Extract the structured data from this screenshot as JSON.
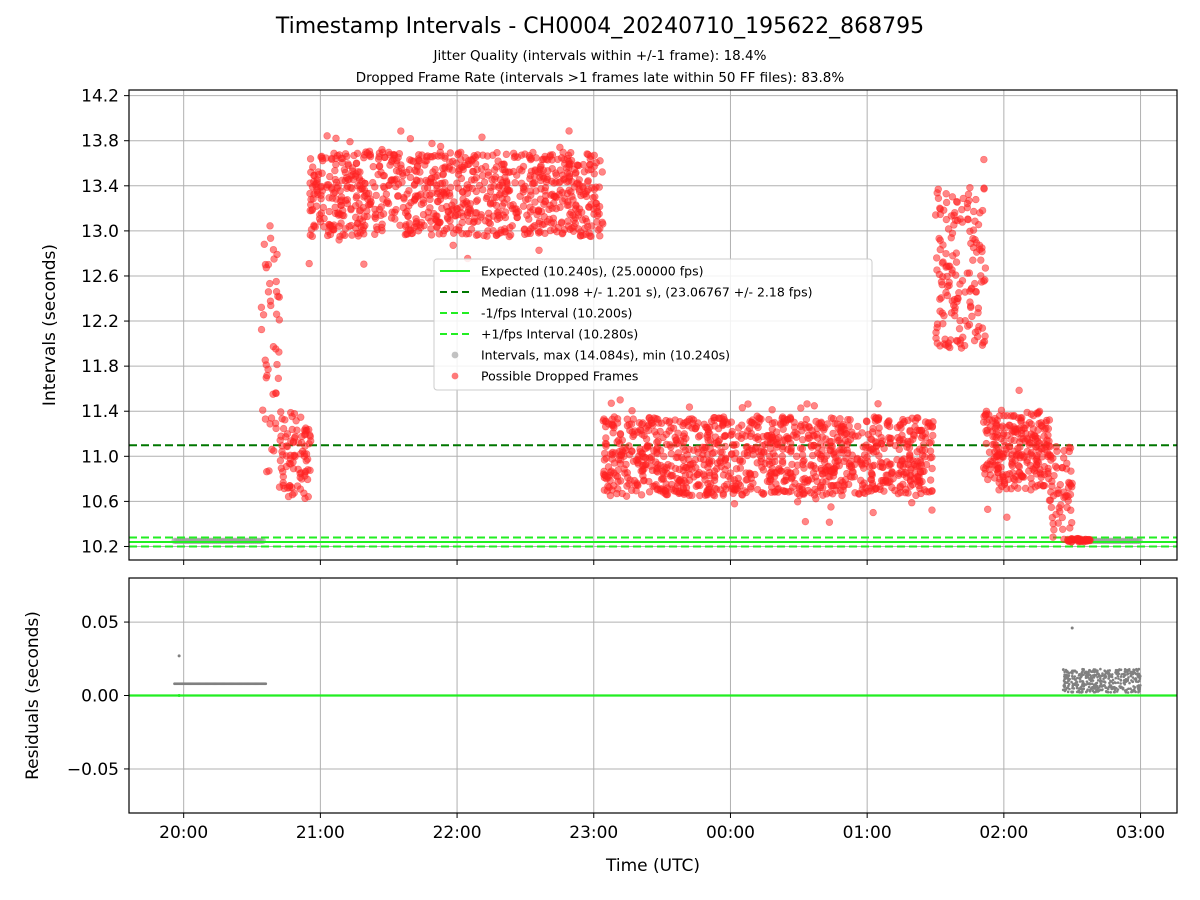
{
  "title": "Timestamp Intervals - CH0004_20240710_195622_868795",
  "subtitle_jitter": "Jitter Quality (intervals within +/-1 frame): 18.4%",
  "subtitle_dropped": "Dropped Frame Rate (intervals >1 frames late within 50 FF files): 83.8%",
  "colors": {
    "expected": "#22ee22",
    "median": "#007700",
    "interval_band": "#22ee22",
    "intervals": "#999999",
    "dropped": "#ff2222",
    "residuals": "#808080",
    "grid": "#b0b0b0"
  },
  "chart_data": [
    {
      "type": "scatter",
      "ylabel": "Intervals (seconds)",
      "ylim": [
        10.08,
        14.25
      ],
      "y_ticks": [
        "10.2",
        "10.6",
        "11.0",
        "11.4",
        "11.8",
        "12.2",
        "12.6",
        "13.0",
        "13.4",
        "13.8",
        "14.2"
      ],
      "x_ticks": [
        "20:00",
        "21:00",
        "22:00",
        "23:00",
        "00:00",
        "01:00",
        "02:00",
        "03:00"
      ],
      "xlim": [
        "19:36",
        "03:16"
      ],
      "grid": true,
      "legend_position": "center",
      "legend": [
        "Expected (10.240s), (25.00000 fps)",
        "Median (11.098 +/- 1.201 s), (23.06767 +/- 2.18 fps)",
        "-1/fps Interval (10.200s)",
        "+1/fps Interval (10.280s)",
        "Intervals, max (14.084s), min (10.240s)",
        "Possible Dropped Frames"
      ],
      "reference_lines": {
        "expected": 10.24,
        "median": 11.098,
        "minus_1fps": 10.2,
        "plus_1fps": 10.28
      },
      "intervals_max": 14.084,
      "intervals_min": 10.24,
      "normal_interval_segments": [
        {
          "start": "19:56",
          "end": "20:35",
          "value": 10.25
        },
        {
          "start": "02:38",
          "end": "03:00",
          "value": 10.25
        }
      ],
      "dropped_frame_segments": [
        {
          "start": "20:34",
          "end": "20:42",
          "y_min": 10.85,
          "y_max": 13.15,
          "count": 45
        },
        {
          "start": "20:42",
          "end": "20:56",
          "y_min": 10.65,
          "y_max": 11.4,
          "count": 90
        },
        {
          "start": "20:55",
          "end": "23:04",
          "y_min": 12.95,
          "y_max": 13.7,
          "count": 900
        },
        {
          "start": "23:04",
          "end": "01:29",
          "y_min": 10.65,
          "y_max": 11.35,
          "count": 1100
        },
        {
          "start": "01:30",
          "end": "01:52",
          "y_min": 11.95,
          "y_max": 13.4,
          "count": 160
        },
        {
          "start": "01:51",
          "end": "02:20",
          "y_min": 10.7,
          "y_max": 11.4,
          "count": 260
        },
        {
          "start": "02:20",
          "end": "02:30",
          "y_min": 10.25,
          "y_max": 11.1,
          "count": 60
        },
        {
          "start": "02:28",
          "end": "02:38",
          "y_min": 10.24,
          "y_max": 10.27,
          "count": 40
        }
      ]
    },
    {
      "type": "scatter",
      "ylabel": "Residuals (seconds)",
      "xlabel": "Time (UTC)",
      "ylim": [
        -0.08,
        0.08
      ],
      "y_ticks": [
        "−0.05",
        "0.00",
        "0.05"
      ],
      "x_ticks": [
        "20:00",
        "21:00",
        "22:00",
        "23:00",
        "00:00",
        "01:00",
        "02:00",
        "03:00"
      ],
      "xlim": [
        "19:36",
        "03:16"
      ],
      "grid": true,
      "zero_line": 0.0,
      "residual_segments": [
        {
          "start": "19:56",
          "end": "20:36",
          "value": 0.008
        },
        {
          "start": "02:25",
          "end": "03:00",
          "y_min": 0.002,
          "y_max": 0.018
        }
      ],
      "residual_outliers": [
        {
          "x": "19:58",
          "y": 0.027
        },
        {
          "x": "19:58",
          "y": 0.0
        },
        {
          "x": "02:30",
          "y": 0.046
        }
      ]
    }
  ]
}
